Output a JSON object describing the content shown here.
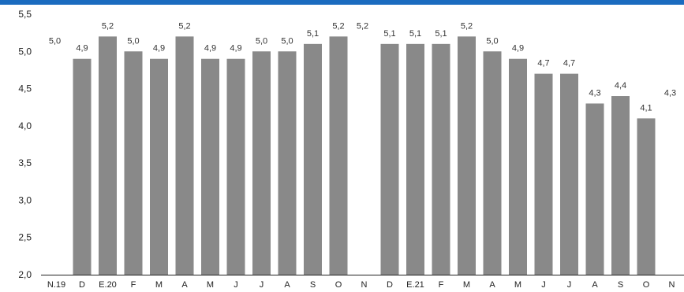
{
  "colors": {
    "bar": "#898989",
    "top_band": "#1a6bbf",
    "axis": "#222222"
  },
  "chart_data": {
    "type": "bar",
    "title": "",
    "xlabel": "",
    "ylabel": "",
    "ylim": [
      2.0,
      5.5
    ],
    "grid": false,
    "legend": "none",
    "yticks": [
      2.0,
      2.5,
      3.0,
      3.5,
      4.0,
      4.5,
      5.0,
      5.5
    ],
    "ytick_labels": [
      "2,0",
      "2,5",
      "3,0",
      "3,5",
      "4,0",
      "4,5",
      "5,0",
      "5,5"
    ],
    "categories": [
      "N.19",
      "D",
      "E.20",
      "F",
      "M",
      "A",
      "M",
      "J",
      "J",
      "A",
      "S",
      "O",
      "N",
      "D",
      "E.21",
      "F",
      "M",
      "A",
      "M",
      "J",
      "J",
      "A",
      "S",
      "O",
      "N"
    ],
    "values": [
      5.0,
      4.9,
      5.2,
      5.0,
      4.9,
      5.2,
      4.9,
      4.9,
      5.0,
      5.0,
      5.1,
      5.2,
      5.2,
      5.1,
      5.1,
      5.1,
      5.2,
      5.0,
      4.9,
      4.7,
      4.7,
      4.3,
      4.4,
      4.1,
      4.3
    ],
    "value_labels": [
      "5,0",
      "4,9",
      "5,2",
      "5,0",
      "4,9",
      "5,2",
      "4,9",
      "4,9",
      "5,0",
      "5,0",
      "5,1",
      "5,2",
      "5,2",
      "5,1",
      "5,1",
      "5,1",
      "5,2",
      "5,0",
      "4,9",
      "4,7",
      "4,7",
      "4,3",
      "4,4",
      "4,1",
      "4,3"
    ],
    "bar_drawn": [
      false,
      true,
      true,
      true,
      true,
      true,
      true,
      true,
      true,
      true,
      true,
      true,
      false,
      true,
      true,
      true,
      true,
      true,
      true,
      true,
      true,
      true,
      true,
      true,
      false
    ]
  }
}
